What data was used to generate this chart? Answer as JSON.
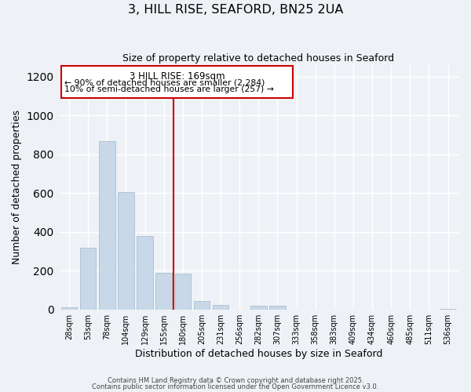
{
  "title": "3, HILL RISE, SEAFORD, BN25 2UA",
  "subtitle": "Size of property relative to detached houses in Seaford",
  "xlabel": "Distribution of detached houses by size in Seaford",
  "ylabel": "Number of detached properties",
  "bar_labels": [
    "28sqm",
    "53sqm",
    "78sqm",
    "104sqm",
    "129sqm",
    "155sqm",
    "180sqm",
    "205sqm",
    "231sqm",
    "256sqm",
    "282sqm",
    "307sqm",
    "333sqm",
    "358sqm",
    "383sqm",
    "409sqm",
    "434sqm",
    "460sqm",
    "485sqm",
    "511sqm",
    "536sqm"
  ],
  "bar_values": [
    12,
    320,
    870,
    605,
    380,
    190,
    185,
    45,
    25,
    0,
    18,
    18,
    0,
    0,
    0,
    0,
    0,
    0,
    0,
    0,
    3
  ],
  "bar_color": "#c8d8e8",
  "bar_edgecolor": "#a8c0d0",
  "vline_color": "#cc0000",
  "annotation_title": "3 HILL RISE: 169sqm",
  "annotation_line1": "← 90% of detached houses are smaller (2,284)",
  "annotation_line2": "10% of semi-detached houses are larger (257) →",
  "annotation_box_edgecolor": "#cc0000",
  "ylim": [
    0,
    1260
  ],
  "yticks": [
    0,
    200,
    400,
    600,
    800,
    1000,
    1200
  ],
  "background_color": "#eef2f6",
  "grid_color": "#ffffff",
  "footer1": "Contains HM Land Registry data © Crown copyright and database right 2025.",
  "footer2": "Contains public sector information licensed under the Open Government Licence v3.0."
}
